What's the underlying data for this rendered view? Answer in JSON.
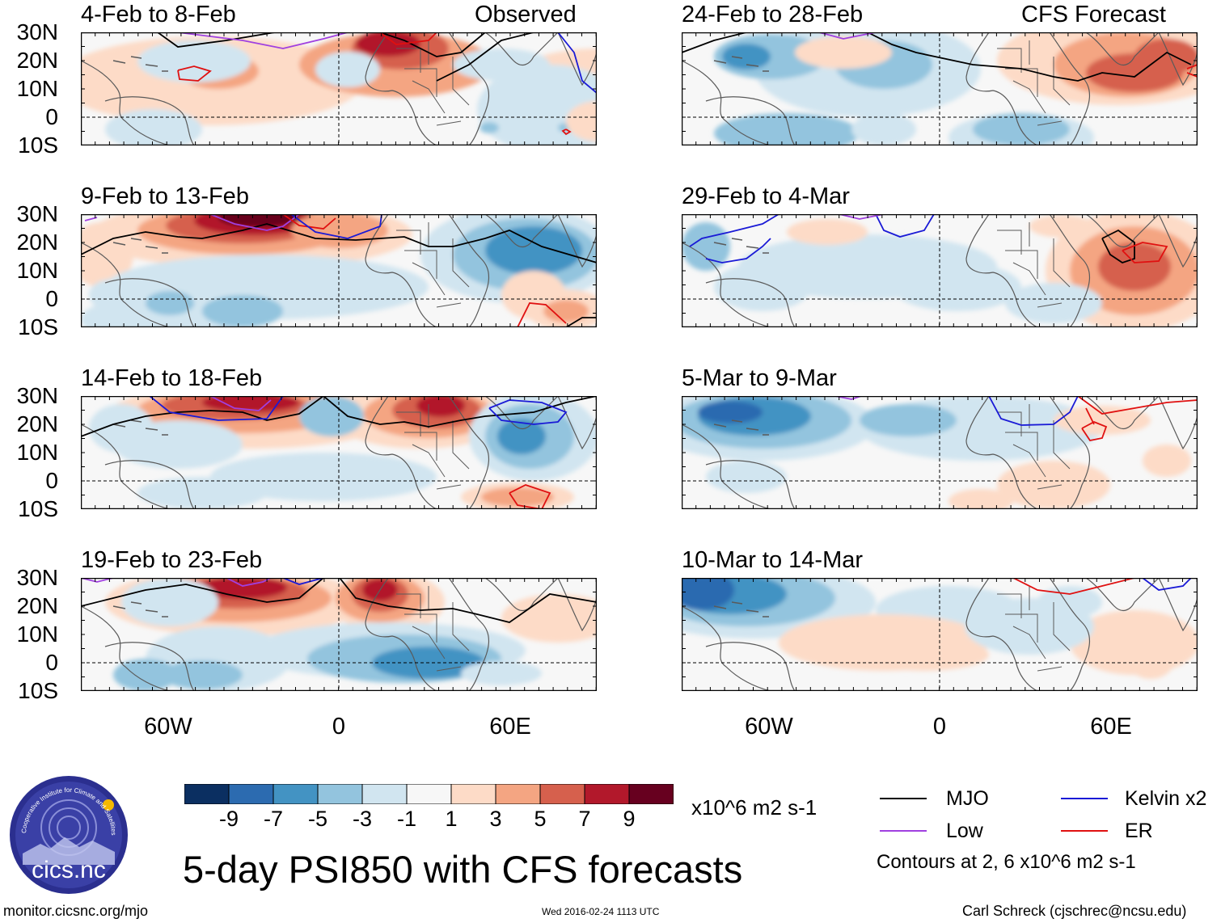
{
  "column_headers": {
    "left": "Observed",
    "right": "CFS Forecast"
  },
  "panels": [
    {
      "id": "p1",
      "title": "4-Feb to 8-Feb",
      "kind": "observed"
    },
    {
      "id": "p2",
      "title": "24-Feb to 28-Feb",
      "kind": "forecast"
    },
    {
      "id": "p3",
      "title": "9-Feb to 13-Feb",
      "kind": "observed"
    },
    {
      "id": "p4",
      "title": "29-Feb to 4-Mar",
      "kind": "forecast"
    },
    {
      "id": "p5",
      "title": "14-Feb to 18-Feb",
      "kind": "observed"
    },
    {
      "id": "p6",
      "title": "5-Mar to 9-Mar",
      "kind": "forecast"
    },
    {
      "id": "p7",
      "title": "19-Feb to 23-Feb",
      "kind": "observed"
    },
    {
      "id": "p8",
      "title": "10-Mar to 14-Mar",
      "kind": "forecast"
    }
  ],
  "lat_labels": [
    "30N",
    "20N",
    "10N",
    "0",
    "10S"
  ],
  "lon_labels": [
    "60W",
    "0",
    "60E"
  ],
  "colorbar": {
    "colors": [
      "#0b2f61",
      "#2c6bb0",
      "#4393c3",
      "#93c4de",
      "#d1e5f0",
      "#f7f7f7",
      "#fddbc7",
      "#f4a582",
      "#d6604d",
      "#b2182b",
      "#67001f"
    ],
    "tick_labels": [
      "-9",
      "-7",
      "-5",
      "-3",
      "-1",
      "1",
      "3",
      "5",
      "7",
      "9"
    ],
    "units": "x10^6 m2 s-1"
  },
  "legend": {
    "items": [
      {
        "label": "MJO",
        "color": "#000000"
      },
      {
        "label": "Kelvin x2",
        "color": "#1a1ad6"
      },
      {
        "label": "Low",
        "color": "#a040e0"
      },
      {
        "label": "ER",
        "color": "#e01010"
      }
    ],
    "note": "Contours at 2, 6 x10^6 m2 s-1"
  },
  "logo_text": "cics.nc",
  "logo_ring_text": "Cooperative Institute for Climate and Satellites",
  "main_title": "5-day PSI850 with CFS forecasts",
  "footer": {
    "url": "monitor.cicsnc.org/mjo",
    "timestamp": "Wed 2016-02-24 1113 UTC",
    "author": "Carl Schreck (cjschrec@ncsu.edu)"
  }
}
